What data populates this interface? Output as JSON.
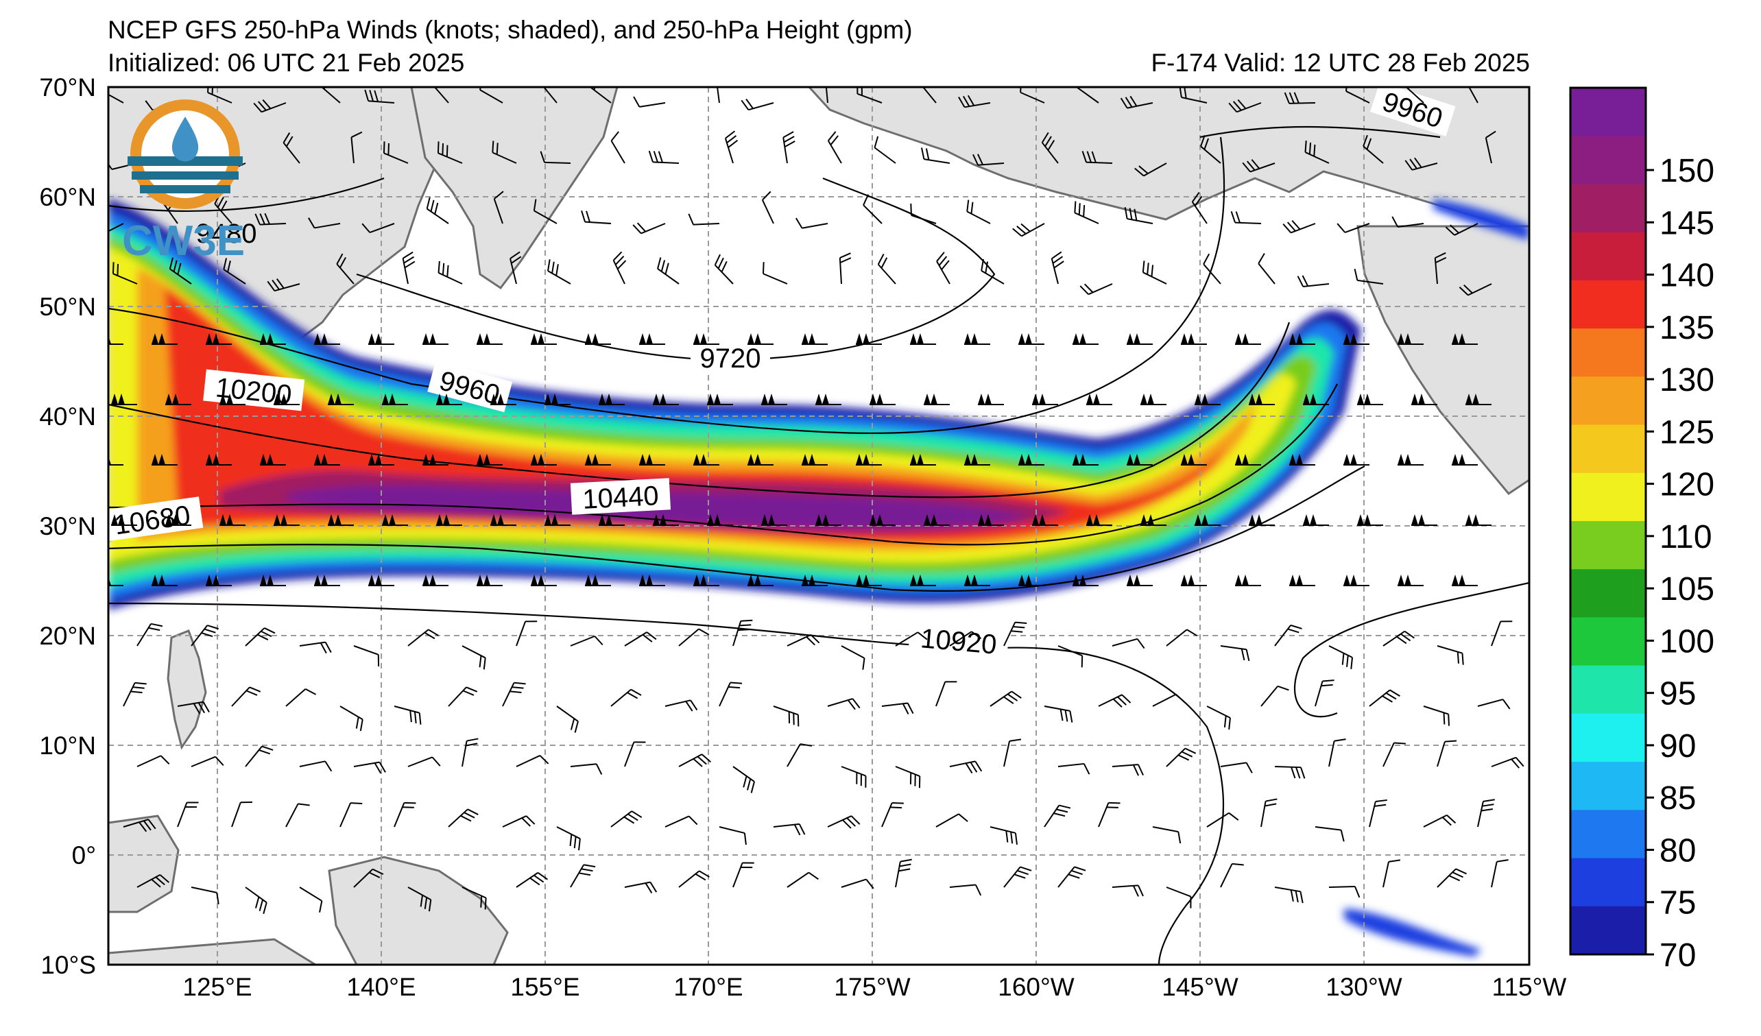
{
  "header": {
    "title": "NCEP GFS 250-hPa Winds (knots; shaded), and 250-hPa Height (gpm)",
    "initialized": "Initialized: 06 UTC 21 Feb 2025",
    "valid": "F-174  Valid: 12 UTC 28 Feb 2025"
  },
  "logo": {
    "text": "CW3E"
  },
  "axes": {
    "lat_labels": [
      "70°N",
      "60°N",
      "50°N",
      "40°N",
      "30°N",
      "20°N",
      "10°N",
      "0°",
      "10°S"
    ],
    "lon_labels": [
      "125°E",
      "140°E",
      "155°E",
      "170°E",
      "175°W",
      "160°W",
      "145°W",
      "130°W",
      "115°W"
    ]
  },
  "contour_labels": [
    "9960",
    "9480",
    "10200",
    "9960",
    "9720",
    "10440",
    "10680",
    "10920"
  ],
  "colorbar": {
    "ticks": [
      "70",
      "75",
      "80",
      "85",
      "90",
      "95",
      "100",
      "105",
      "110",
      "120",
      "125",
      "130",
      "135",
      "140",
      "145",
      "150"
    ],
    "colors": [
      "#1a1ea8",
      "#1e3fe0",
      "#1e78f0",
      "#1eb9f5",
      "#1ef0f0",
      "#1ee6aa",
      "#1ec83c",
      "#1ea01e",
      "#78cd1e",
      "#f0f01e",
      "#f5c81e",
      "#f5a01e",
      "#f5781e",
      "#f02d1e",
      "#c81e3c",
      "#a01e64",
      "#8c1e82",
      "#781e96"
    ]
  },
  "colors": {
    "land": "#e1e1e1",
    "coast": "#6e6e6e",
    "grid": "#9a9a9a"
  }
}
